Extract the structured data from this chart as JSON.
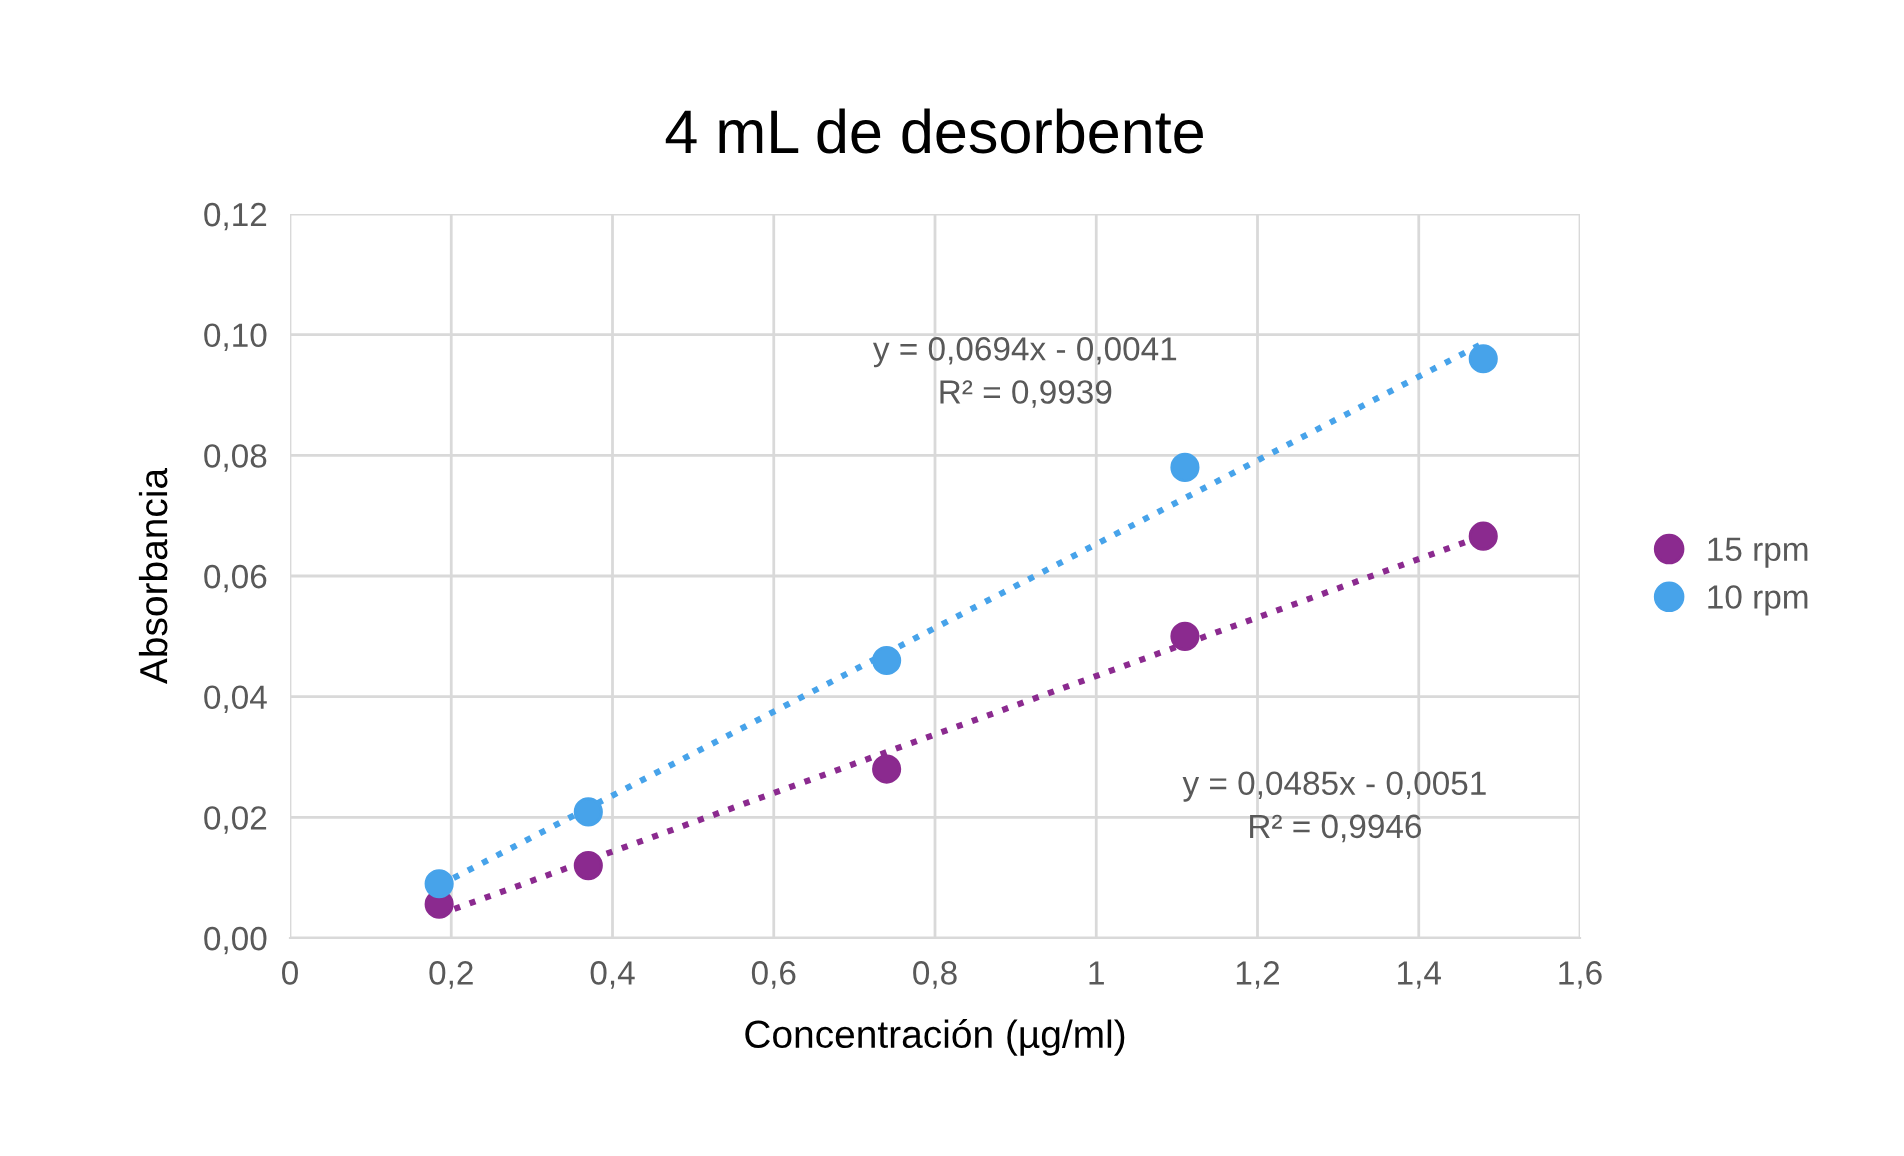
{
  "chart_data": {
    "type": "scatter",
    "title": "4 mL de desorbente",
    "xlabel": "Concentración (µg/ml)",
    "ylabel": "Absorbancia",
    "xlim": [
      0,
      1.6
    ],
    "ylim": [
      0,
      0.12
    ],
    "xticks": [
      0,
      {
        "value": 0.2,
        "label": "0,2"
      },
      {
        "value": 0.4,
        "label": "0,4"
      },
      {
        "value": 0.6,
        "label": "0,6"
      },
      {
        "value": 0.8,
        "label": "0,8"
      },
      1,
      {
        "value": 1.2,
        "label": "1,2"
      },
      {
        "value": 1.4,
        "label": "1,4"
      },
      {
        "value": 1.6,
        "label": "1,6"
      }
    ],
    "yticks": [
      {
        "value": 0,
        "label": "0,00"
      },
      {
        "value": 0.02,
        "label": "0,02"
      },
      {
        "value": 0.04,
        "label": "0,04"
      },
      {
        "value": 0.06,
        "label": "0,06"
      },
      {
        "value": 0.08,
        "label": "0,08"
      },
      {
        "value": 0.1,
        "label": "0,10"
      },
      {
        "value": 0.12,
        "label": "0,12"
      }
    ],
    "grid": true,
    "legend": "right",
    "marker": "circle",
    "series": [
      {
        "name": "15 rpm",
        "color": "#8b2a8f",
        "x": [
          0.185,
          0.37,
          0.74,
          1.11,
          1.48
        ],
        "values": [
          0.0056,
          0.012,
          0.028,
          0.05,
          0.0666
        ]
      },
      {
        "name": "10 rpm",
        "color": "#47a3ea",
        "x": [
          0.185,
          0.37,
          0.74,
          1.11,
          1.48
        ],
        "values": [
          0.009,
          0.0209,
          0.046,
          0.078,
          0.096
        ]
      },
      {
        "type": "line",
        "color": "#8b2a8f",
        "line_style": "dotted",
        "marker": "none",
        "x": [
          0.185,
          1.48
        ],
        "values": [
          0.0039,
          0.0667
        ]
      },
      {
        "type": "line",
        "color": "#47a3ea",
        "line_style": "dotted",
        "marker": "none",
        "x": [
          0.185,
          1.48
        ],
        "values": [
          0.0087,
          0.0986
        ]
      }
    ],
    "annotations": [
      "y = 0,0694x - 0,0041\nR² = 0,9939",
      "y = 0,0485x - 0,0051\nR² = 0,9946"
    ]
  }
}
